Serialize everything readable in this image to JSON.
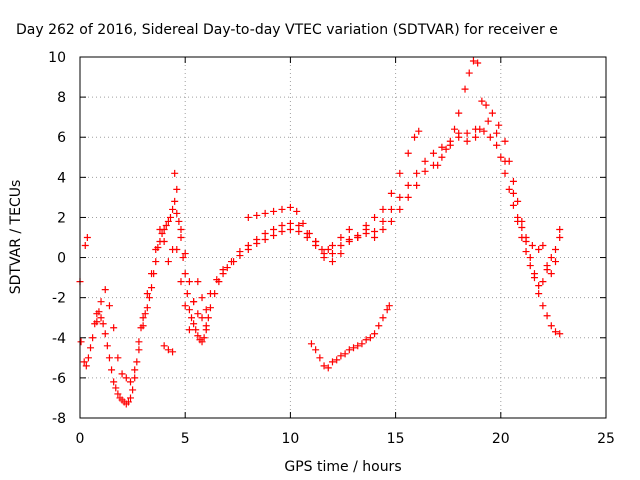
{
  "chart_data": {
    "type": "scatter",
    "title": "Day 262 of 2016, Sidereal Day-to-day VTEC variation (SDTVAR) for receiver e",
    "xlabel": "GPS time / hours",
    "ylabel": "SDTVAR / TECUs",
    "xlim": [
      0,
      25
    ],
    "ylim": [
      -8,
      10
    ],
    "xticks": [
      "0",
      "5",
      "10",
      "15",
      "20",
      "25"
    ],
    "yticks": [
      "-8",
      "-6",
      "-4",
      "-2",
      "0",
      "2",
      "4",
      "6",
      "8",
      "10"
    ],
    "grid": true,
    "marker": "+",
    "color": "#ff0000",
    "series": [
      {
        "points": [
          [
            0.0,
            -1.2
          ],
          [
            0.05,
            -4.2
          ],
          [
            0.2,
            -5.2
          ],
          [
            0.3,
            -5.4
          ],
          [
            0.4,
            -5.0
          ],
          [
            0.5,
            -4.5
          ],
          [
            0.6,
            -4.0
          ],
          [
            0.7,
            -3.3
          ],
          [
            0.8,
            -2.8
          ],
          [
            0.9,
            -2.7
          ],
          [
            1.0,
            -3.0
          ],
          [
            1.1,
            -3.3
          ],
          [
            1.2,
            -3.8
          ],
          [
            1.3,
            -4.4
          ],
          [
            1.4,
            -5.0
          ],
          [
            1.5,
            -5.6
          ],
          [
            1.6,
            -6.2
          ],
          [
            1.7,
            -6.5
          ],
          [
            1.8,
            -6.8
          ],
          [
            1.9,
            -7.0
          ],
          [
            2.0,
            -7.1
          ],
          [
            2.1,
            -7.2
          ],
          [
            2.2,
            -7.3
          ],
          [
            2.3,
            -7.2
          ],
          [
            2.4,
            -7.0
          ],
          [
            2.5,
            -6.6
          ],
          [
            2.6,
            -6.0
          ],
          [
            2.7,
            -5.2
          ],
          [
            2.8,
            -4.2
          ],
          [
            2.9,
            -3.5
          ],
          [
            3.0,
            -3.0
          ],
          [
            3.1,
            -2.8
          ],
          [
            3.2,
            -2.5
          ],
          [
            3.3,
            -2.0
          ],
          [
            3.4,
            -1.5
          ],
          [
            3.5,
            -0.8
          ],
          [
            3.6,
            -0.2
          ],
          [
            3.7,
            0.5
          ],
          [
            3.8,
            0.8
          ],
          [
            3.9,
            1.2
          ],
          [
            4.0,
            1.4
          ],
          [
            4.1,
            1.6
          ],
          [
            4.2,
            1.8
          ],
          [
            4.3,
            2.0
          ],
          [
            4.4,
            2.4
          ],
          [
            4.5,
            2.8
          ],
          [
            4.6,
            2.2
          ],
          [
            4.7,
            1.8
          ],
          [
            4.8,
            1.0
          ],
          [
            4.9,
            0.0
          ],
          [
            5.0,
            -0.8
          ],
          [
            5.1,
            -1.8
          ],
          [
            5.2,
            -2.6
          ],
          [
            5.3,
            -3.0
          ],
          [
            5.4,
            -3.3
          ],
          [
            5.5,
            -3.6
          ],
          [
            5.6,
            -3.9
          ],
          [
            5.7,
            -4.1
          ],
          [
            5.8,
            -4.2
          ],
          [
            5.9,
            -4.0
          ],
          [
            6.0,
            -3.6
          ],
          [
            6.1,
            -3.0
          ],
          [
            6.2,
            -2.5
          ],
          [
            6.4,
            -1.8
          ],
          [
            6.6,
            -1.2
          ],
          [
            6.8,
            -0.8
          ],
          [
            7.0,
            -0.5
          ],
          [
            7.3,
            -0.2
          ],
          [
            7.6,
            0.1
          ],
          [
            8.0,
            0.4
          ],
          [
            8.4,
            0.7
          ],
          [
            8.8,
            0.9
          ],
          [
            9.2,
            1.1
          ],
          [
            9.6,
            1.3
          ],
          [
            10.0,
            1.4
          ],
          [
            10.4,
            1.3
          ],
          [
            10.8,
            1.0
          ],
          [
            11.2,
            0.6
          ],
          [
            11.6,
            0.2
          ],
          [
            12.0,
            0.2
          ],
          [
            12.4,
            0.6
          ],
          [
            12.8,
            0.9
          ],
          [
            13.2,
            1.1
          ],
          [
            13.6,
            1.2
          ],
          [
            14.0,
            1.3
          ],
          [
            14.4,
            1.8
          ],
          [
            14.8,
            2.4
          ],
          [
            15.2,
            3.0
          ],
          [
            15.6,
            3.6
          ],
          [
            16.0,
            4.2
          ],
          [
            16.4,
            4.8
          ],
          [
            16.8,
            5.2
          ],
          [
            17.2,
            5.5
          ],
          [
            17.6,
            5.8
          ],
          [
            18.0,
            6.0
          ],
          [
            18.4,
            6.2
          ],
          [
            18.8,
            6.4
          ],
          [
            19.2,
            6.3
          ],
          [
            19.5,
            6.0
          ],
          [
            19.8,
            5.6
          ],
          [
            20.0,
            5.0
          ],
          [
            20.2,
            4.2
          ],
          [
            20.4,
            3.4
          ],
          [
            20.6,
            2.6
          ],
          [
            20.8,
            1.8
          ],
          [
            21.0,
            1.0
          ],
          [
            21.2,
            0.3
          ],
          [
            21.4,
            -0.4
          ],
          [
            21.6,
            -1.0
          ],
          [
            21.8,
            -1.4
          ],
          [
            22.0,
            -1.2
          ],
          [
            22.2,
            -0.6
          ],
          [
            22.4,
            0.0
          ],
          [
            22.6,
            0.4
          ],
          [
            22.8,
            1.0
          ]
        ]
      },
      {
        "points": [
          [
            0.25,
            0.6
          ],
          [
            0.35,
            1.0
          ],
          [
            0.8,
            -3.2
          ],
          [
            1.0,
            -2.2
          ],
          [
            1.2,
            -1.6
          ],
          [
            1.4,
            -2.4
          ],
          [
            1.6,
            -3.5
          ],
          [
            1.8,
            -5.0
          ],
          [
            2.0,
            -5.8
          ],
          [
            2.2,
            -6.0
          ],
          [
            2.4,
            -6.2
          ],
          [
            2.6,
            -5.6
          ],
          [
            2.8,
            -4.6
          ],
          [
            3.0,
            -3.4
          ],
          [
            3.2,
            -1.8
          ],
          [
            3.4,
            -0.8
          ],
          [
            3.6,
            0.4
          ],
          [
            3.8,
            1.4
          ],
          [
            4.0,
            0.8
          ],
          [
            4.2,
            -0.2
          ],
          [
            4.4,
            0.4
          ],
          [
            4.5,
            4.2
          ],
          [
            4.6,
            3.4
          ],
          [
            4.8,
            1.4
          ],
          [
            5.0,
            0.2
          ],
          [
            5.2,
            -1.2
          ],
          [
            5.4,
            -2.2
          ],
          [
            5.6,
            -2.8
          ],
          [
            5.8,
            -3.0
          ],
          [
            6.0,
            -2.6
          ],
          [
            6.2,
            -1.8
          ],
          [
            6.5,
            -1.1
          ],
          [
            6.8,
            -0.6
          ],
          [
            7.2,
            -0.2
          ],
          [
            7.6,
            0.3
          ],
          [
            8.0,
            0.6
          ],
          [
            8.4,
            0.9
          ],
          [
            8.8,
            1.2
          ],
          [
            9.2,
            1.4
          ],
          [
            9.6,
            1.6
          ],
          [
            10.0,
            1.7
          ],
          [
            10.4,
            1.6
          ],
          [
            10.8,
            1.2
          ],
          [
            11.2,
            0.8
          ],
          [
            11.6,
            0.0
          ],
          [
            12.0,
            -0.2
          ],
          [
            12.4,
            0.2
          ],
          [
            12.8,
            0.8
          ],
          [
            13.2,
            1.0
          ],
          [
            13.6,
            1.4
          ],
          [
            14.0,
            1.0
          ],
          [
            14.4,
            1.4
          ],
          [
            14.8,
            1.8
          ],
          [
            15.2,
            2.4
          ],
          [
            15.6,
            3.0
          ],
          [
            16.0,
            3.6
          ],
          [
            16.4,
            4.3
          ],
          [
            16.8,
            4.6
          ],
          [
            17.2,
            5.0
          ],
          [
            17.6,
            5.6
          ],
          [
            18.0,
            6.2
          ],
          [
            18.4,
            5.8
          ],
          [
            18.8,
            6.0
          ],
          [
            19.0,
            6.4
          ],
          [
            19.4,
            6.8
          ],
          [
            19.8,
            6.2
          ],
          [
            20.2,
            4.8
          ],
          [
            20.6,
            3.2
          ],
          [
            20.8,
            2.0
          ],
          [
            21.0,
            1.5
          ],
          [
            21.2,
            0.8
          ],
          [
            21.4,
            0.0
          ],
          [
            21.6,
            -0.8
          ],
          [
            21.8,
            -1.8
          ],
          [
            22.0,
            -2.4
          ],
          [
            22.2,
            -2.9
          ],
          [
            22.4,
            -3.4
          ],
          [
            22.6,
            -3.7
          ],
          [
            22.8,
            -3.8
          ]
        ]
      },
      {
        "points": [
          [
            8.0,
            2.0
          ],
          [
            8.4,
            2.1
          ],
          [
            8.8,
            2.2
          ],
          [
            9.2,
            2.3
          ],
          [
            9.6,
            2.4
          ],
          [
            10.0,
            2.5
          ],
          [
            10.3,
            2.3
          ],
          [
            10.6,
            1.7
          ],
          [
            10.9,
            1.2
          ],
          [
            11.2,
            0.8
          ],
          [
            11.5,
            0.4
          ],
          [
            11.8,
            0.4
          ],
          [
            12.0,
            0.6
          ],
          [
            12.4,
            1.0
          ],
          [
            12.8,
            1.4
          ],
          [
            13.2,
            1.0
          ],
          [
            13.6,
            1.6
          ],
          [
            14.0,
            2.0
          ],
          [
            14.4,
            2.4
          ],
          [
            14.8,
            3.2
          ],
          [
            15.2,
            4.2
          ],
          [
            15.6,
            5.2
          ],
          [
            15.9,
            6.0
          ],
          [
            16.1,
            6.3
          ],
          [
            17.0,
            4.6
          ],
          [
            17.4,
            5.4
          ],
          [
            17.8,
            6.4
          ],
          [
            18.0,
            7.2
          ],
          [
            18.3,
            8.4
          ],
          [
            18.5,
            9.2
          ],
          [
            18.7,
            9.8
          ],
          [
            18.9,
            9.7
          ],
          [
            19.1,
            7.8
          ],
          [
            19.3,
            7.6
          ],
          [
            19.6,
            7.2
          ],
          [
            19.9,
            6.6
          ],
          [
            20.2,
            5.8
          ],
          [
            20.4,
            4.8
          ],
          [
            20.6,
            3.8
          ],
          [
            20.8,
            2.8
          ],
          [
            21.0,
            1.8
          ],
          [
            21.2,
            1.0
          ],
          [
            21.5,
            0.6
          ],
          [
            21.8,
            0.4
          ],
          [
            22.0,
            0.6
          ],
          [
            22.2,
            -0.4
          ],
          [
            22.4,
            -0.8
          ],
          [
            22.6,
            -0.2
          ],
          [
            22.8,
            1.4
          ]
        ]
      },
      {
        "points": [
          [
            4.0,
            -4.4
          ],
          [
            4.2,
            -4.6
          ],
          [
            4.4,
            -4.7
          ],
          [
            4.6,
            0.4
          ],
          [
            4.8,
            -1.2
          ],
          [
            5.0,
            -2.4
          ],
          [
            5.2,
            -3.6
          ],
          [
            5.4,
            -2.2
          ],
          [
            5.6,
            -1.2
          ],
          [
            5.8,
            -2.0
          ],
          [
            6.0,
            -3.4
          ]
        ]
      },
      {
        "points": [
          [
            11.0,
            -4.3
          ],
          [
            11.2,
            -4.6
          ],
          [
            11.4,
            -5.0
          ],
          [
            11.6,
            -5.4
          ],
          [
            11.8,
            -5.5
          ],
          [
            12.0,
            -5.2
          ],
          [
            12.2,
            -5.1
          ],
          [
            12.4,
            -4.9
          ],
          [
            12.6,
            -4.8
          ],
          [
            12.8,
            -4.6
          ],
          [
            13.0,
            -4.5
          ],
          [
            13.2,
            -4.4
          ],
          [
            13.4,
            -4.3
          ],
          [
            13.6,
            -4.1
          ],
          [
            13.8,
            -4.0
          ],
          [
            14.0,
            -3.8
          ],
          [
            14.2,
            -3.4
          ],
          [
            14.4,
            -3.0
          ],
          [
            14.6,
            -2.6
          ],
          [
            14.7,
            -2.4
          ]
        ]
      }
    ]
  }
}
